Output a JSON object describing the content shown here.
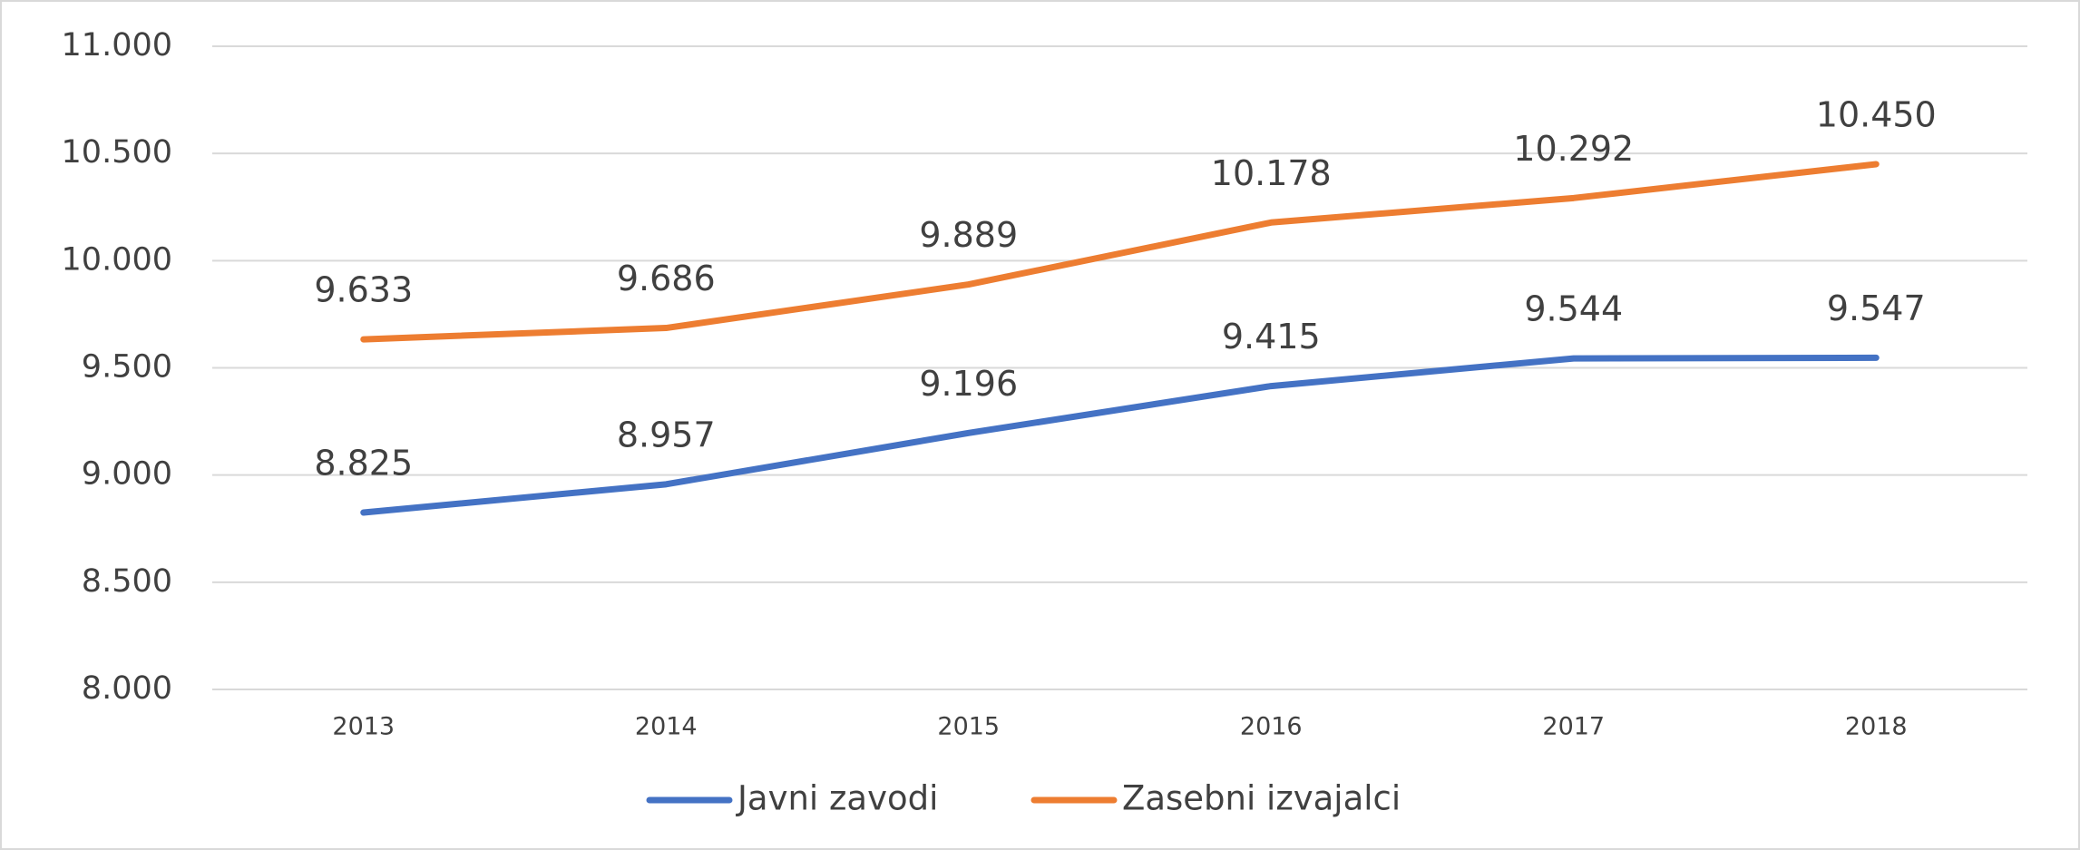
{
  "chart_data": {
    "type": "line",
    "categories": [
      "2013",
      "2014",
      "2015",
      "2016",
      "2017",
      "2018"
    ],
    "series": [
      {
        "name": "Javni zavodi",
        "color": "#4472c4",
        "values": [
          8825,
          8957,
          9196,
          9415,
          9544,
          9547
        ],
        "value_labels": [
          "8.825",
          "8.957",
          "9.196",
          "9.415",
          "9.544",
          "9.547"
        ]
      },
      {
        "name": "Zasebni izvajalci",
        "color": "#ed7d31",
        "values": [
          9633,
          9686,
          9889,
          10178,
          10292,
          10450
        ],
        "value_labels": [
          "9.633",
          "9.686",
          "9.889",
          "10.178",
          "10.292",
          "10.450"
        ]
      }
    ],
    "ylim": [
      8000,
      11000
    ],
    "yticks": [
      {
        "value": 8000,
        "label": "8.000"
      },
      {
        "value": 8500,
        "label": "8.500"
      },
      {
        "value": 9000,
        "label": "9.000"
      },
      {
        "value": 9500,
        "label": "9.500"
      },
      {
        "value": 10000,
        "label": "10.000"
      },
      {
        "value": 10500,
        "label": "10.500"
      },
      {
        "value": 11000,
        "label": "11.000"
      }
    ],
    "grid": true,
    "legend": "bottom"
  }
}
